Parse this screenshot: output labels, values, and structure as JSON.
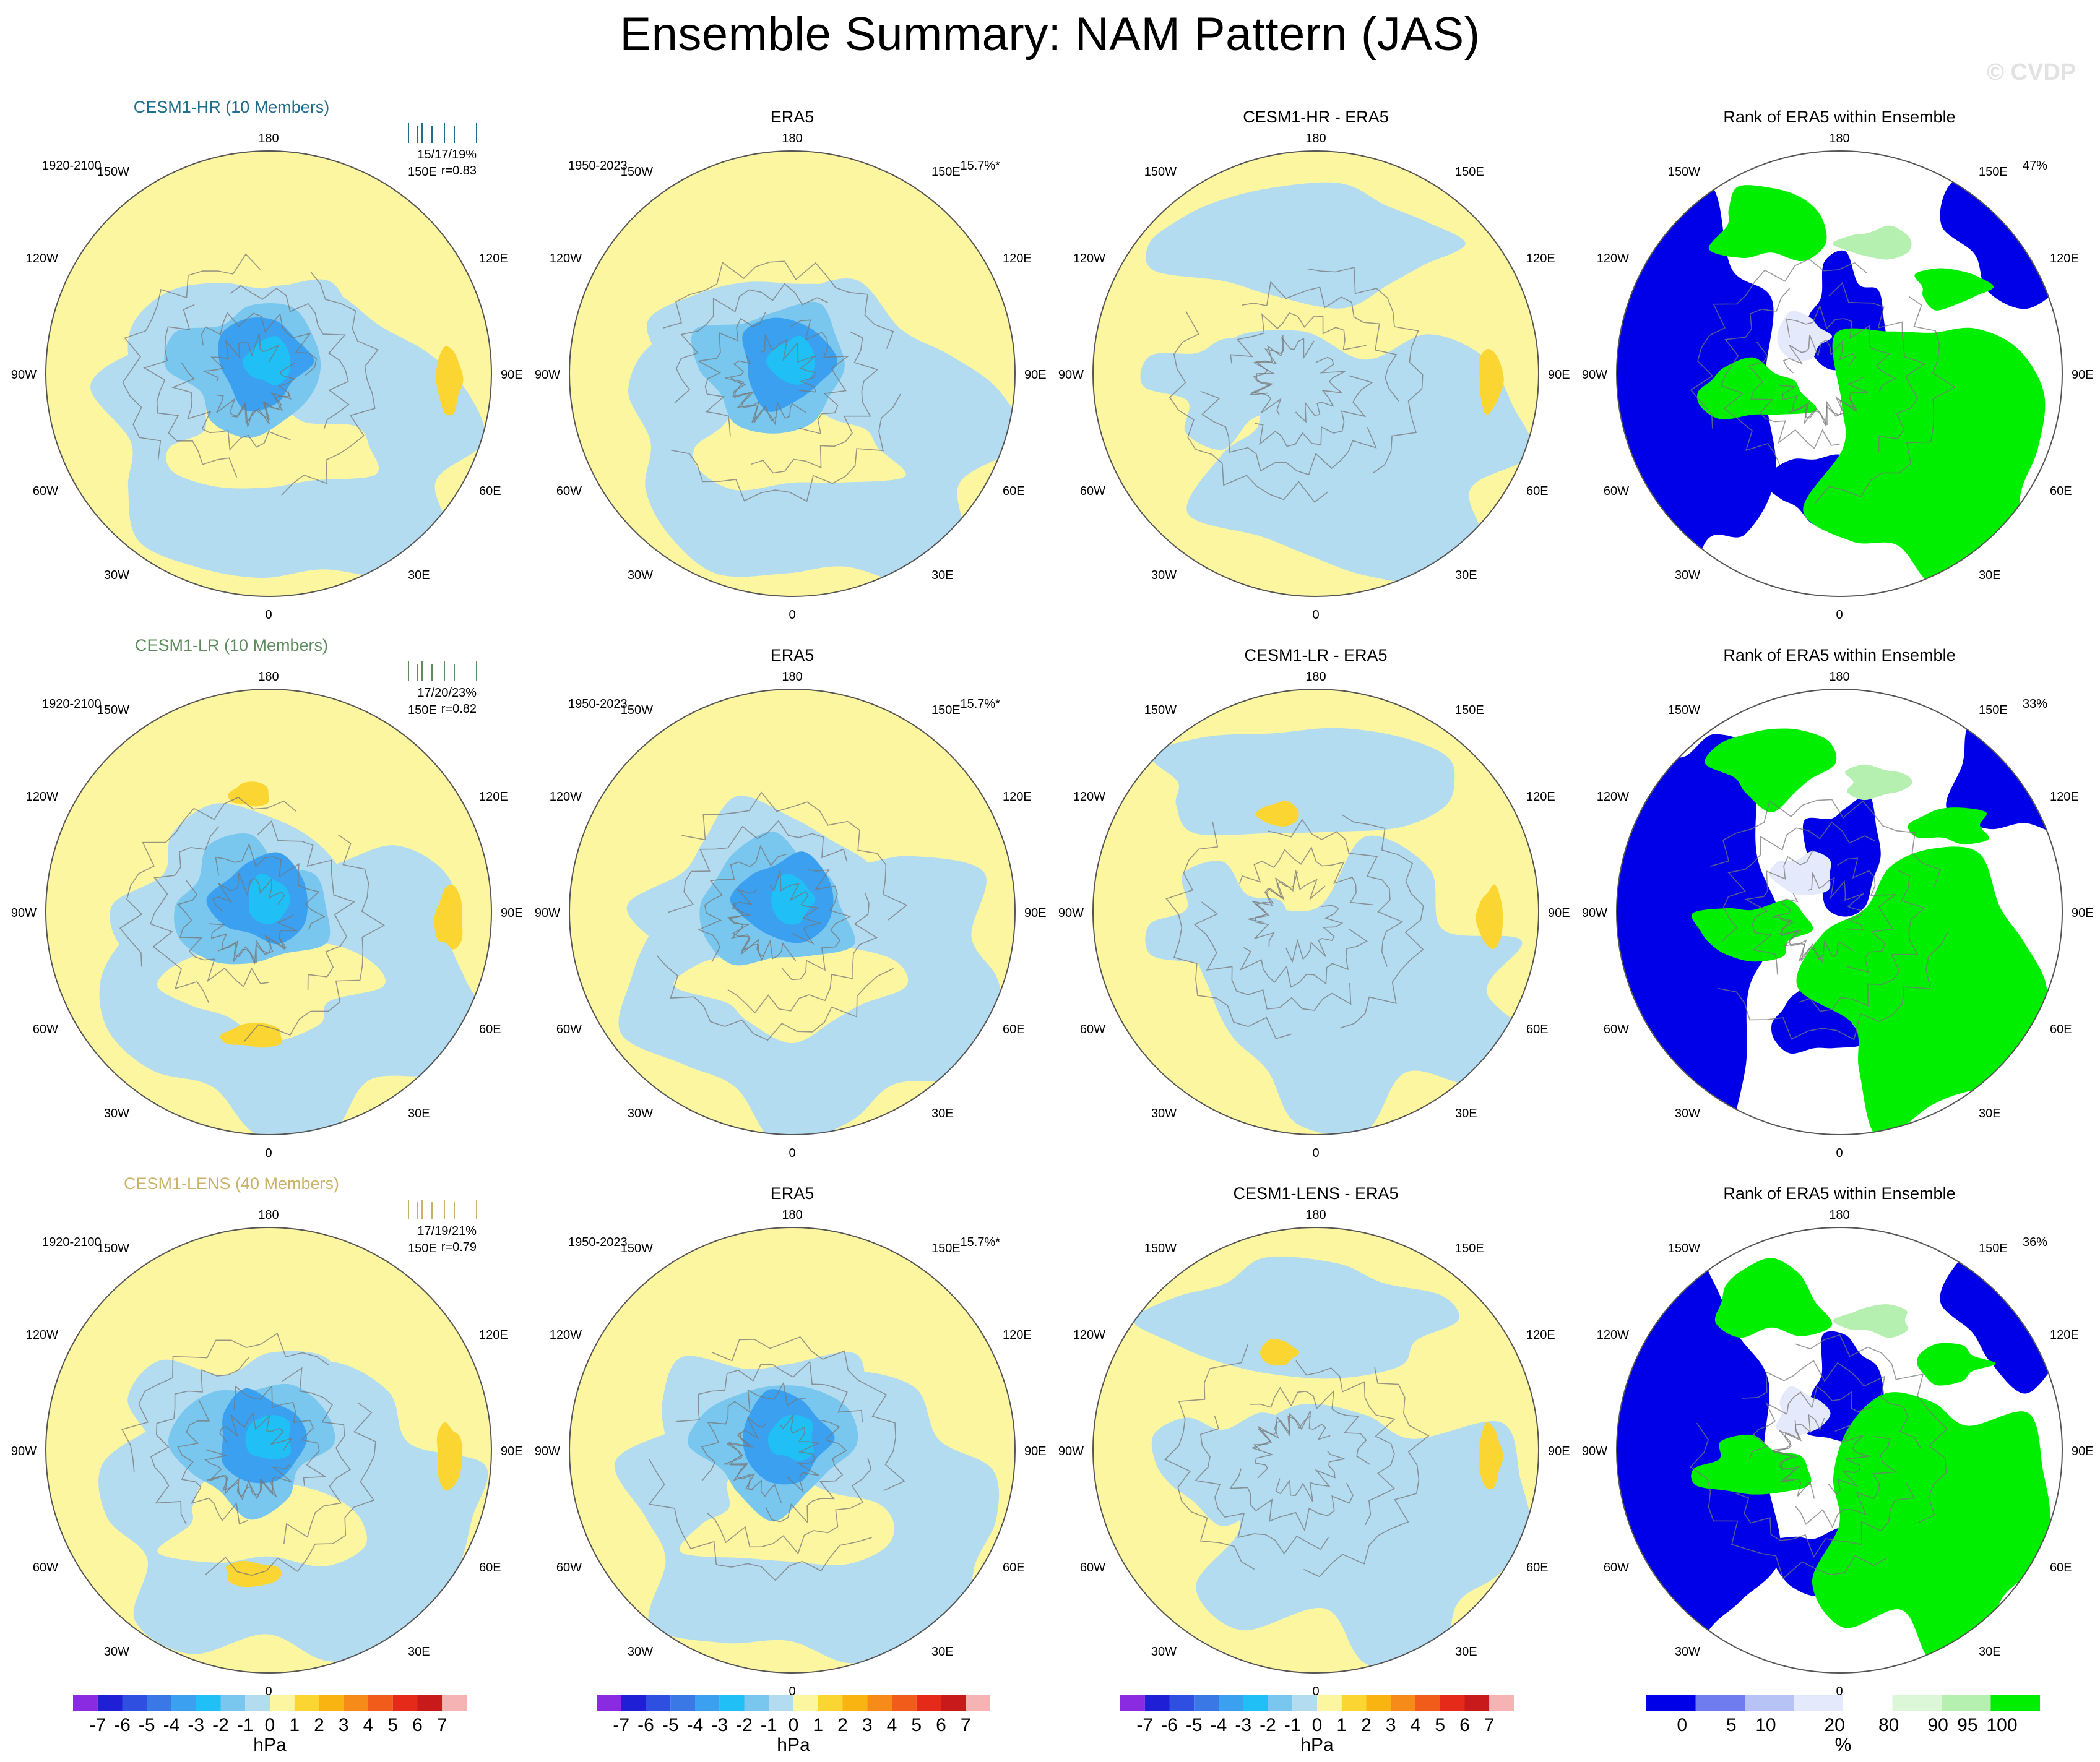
{
  "title": "Ensemble Summary: NAM Pattern (JAS)",
  "watermark": "© CVDP",
  "colors": {
    "neg7": "#8a2be2",
    "neg6": "#1f1fd6",
    "neg5": "#2f4fe0",
    "neg4": "#3a78e6",
    "neg3": "#3aa0ef",
    "neg2": "#20bff5",
    "neg1": "#79c6ee",
    "neg0": "#b3dcf1",
    "pos0": "#fdf6a0",
    "pos1": "#fbd531",
    "pos2": "#f9b412",
    "pos3": "#f68b1a",
    "pos4": "#f25c1b",
    "pos5": "#e52a1a",
    "pos6": "#c81a1a",
    "pos7": "#f6b3b3",
    "rank_0": "#0000e8",
    "rank_5": "#6f7cf0",
    "rank_10": "#b8c3f5",
    "rank_20": "#e4e9fb",
    "rank_80": "#ffffff",
    "rank_90": "#dbf7d8",
    "rank_95": "#b6f0b0",
    "rank_100": "#00ee00",
    "hr_name": "#1f6e8c",
    "lr_name": "#5e8c5e",
    "lens_name": "#c9b36a"
  },
  "lon_labels": {
    "top": "180",
    "bottom": "0",
    "ul": "150W",
    "ur": "150E",
    "ul2": "120W",
    "ur2": "120E",
    "left": "90W",
    "right": "90E",
    "ll2": "60W",
    "lr2": "60E",
    "ll": "30W",
    "lr": "30E"
  },
  "rows": [
    {
      "model": {
        "title": "CESM1-HR (10 Members)",
        "period": "1920-2100",
        "pct": "15/17/19%",
        "r": "r=0.83"
      },
      "obs": {
        "title": "ERA5",
        "period": "1950-2023",
        "pct": "15.7%*"
      },
      "diff": {
        "title": "CESM1-HR - ERA5"
      },
      "rank": {
        "title": "Rank of ERA5 within Ensemble",
        "pct": "47%"
      }
    },
    {
      "model": {
        "title": "CESM1-LR (10 Members)",
        "period": "1920-2100",
        "pct": "17/20/23%",
        "r": "r=0.82"
      },
      "obs": {
        "title": "ERA5",
        "period": "1950-2023",
        "pct": "15.7%*"
      },
      "diff": {
        "title": "CESM1-LR - ERA5"
      },
      "rank": {
        "title": "Rank of ERA5 within Ensemble",
        "pct": "33%"
      }
    },
    {
      "model": {
        "title": "CESM1-LENS (40 Members)",
        "period": "1920-2100",
        "pct": "17/19/21%",
        "r": "r=0.79"
      },
      "obs": {
        "title": "ERA5",
        "period": "1950-2023",
        "pct": "15.7%*"
      },
      "diff": {
        "title": "CESM1-LENS - ERA5"
      },
      "rank": {
        "title": "Rank of ERA5 within Ensemble",
        "pct": "36%"
      }
    }
  ],
  "colorbar_hpa": {
    "labels": [
      "-7",
      "-6",
      "-5",
      "-4",
      "-3",
      "-2",
      "-1",
      "0",
      "1",
      "2",
      "3",
      "4",
      "5",
      "6",
      "7"
    ],
    "unit": "hPa"
  },
  "colorbar_rank": {
    "labels": [
      "0",
      "5",
      "10",
      "20",
      "80",
      "90",
      "95",
      "100"
    ],
    "unit": "%"
  }
}
